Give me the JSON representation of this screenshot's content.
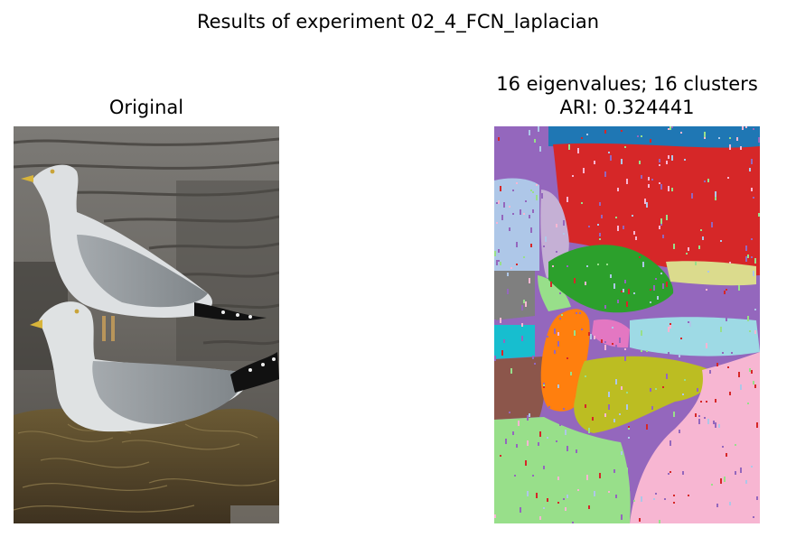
{
  "figure": {
    "suptitle": "Results of experiment 02_4_FCN_laplacian"
  },
  "left_panel": {
    "title": "Original"
  },
  "right_panel": {
    "title_line1": "16 eigenvalues; 16 clusters",
    "title_line2": "ARI: 0.324441"
  },
  "colors": {
    "blue": "#1f77b4",
    "orange": "#ff7f0e",
    "green": "#2ca02c",
    "red": "#d62728",
    "purple": "#9467bd",
    "brown": "#8c564b",
    "pink": "#e377c2",
    "gray": "#7f7f7f",
    "olive": "#bcbd22",
    "cyan": "#17becf",
    "light_blue": "#aec7e8",
    "light_green": "#98df8a",
    "light_purple": "#c5b0d5",
    "light_pink": "#f7b6d2",
    "light_cyan": "#9edae5",
    "light_olive": "#dbdb8d"
  }
}
